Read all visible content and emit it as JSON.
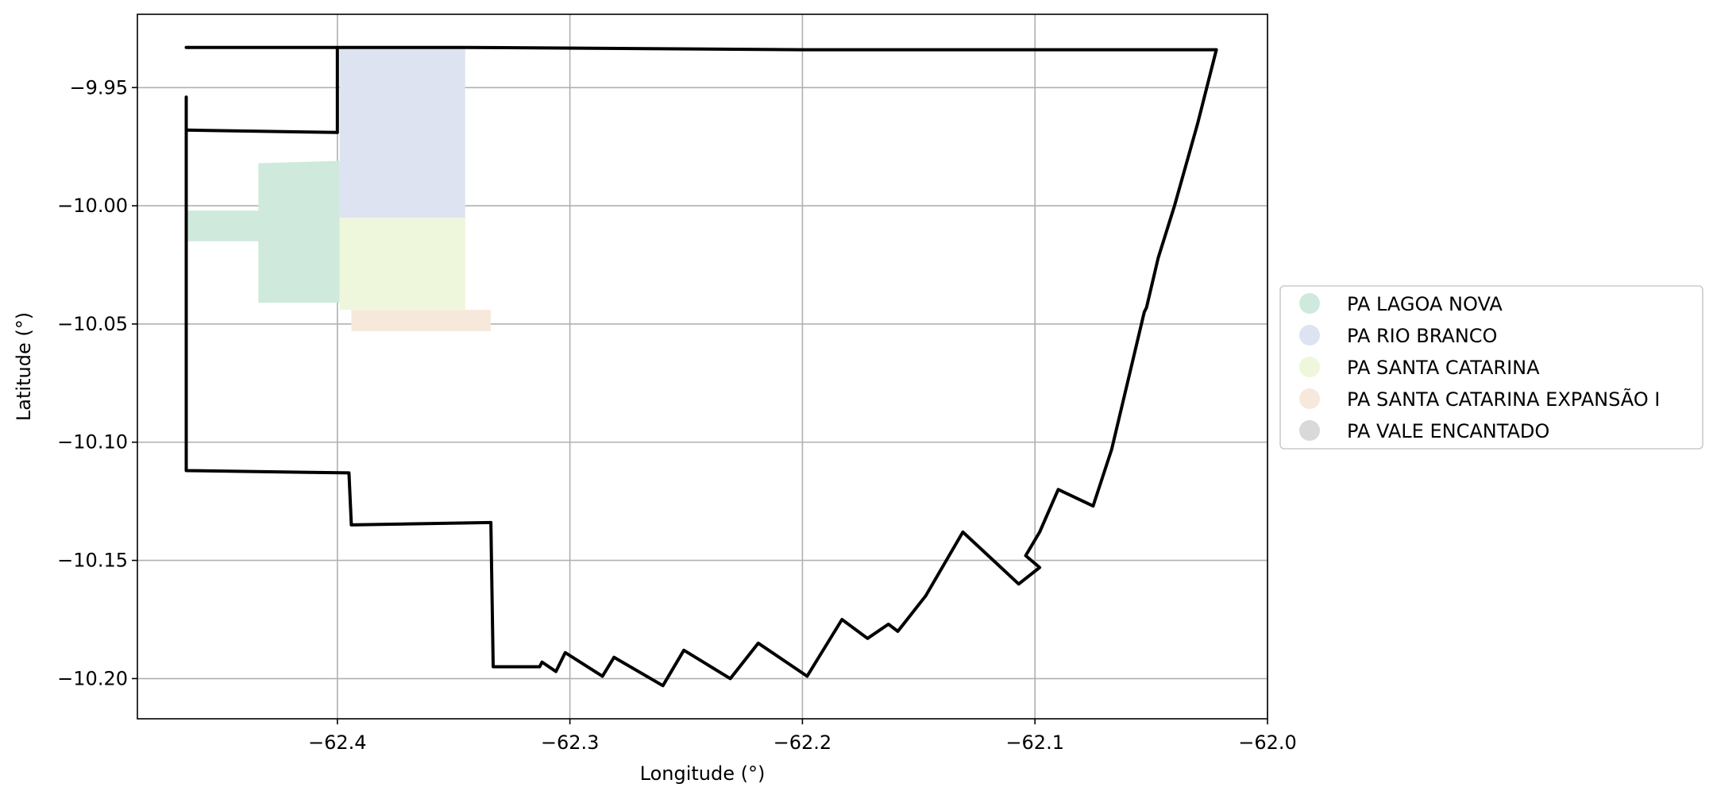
{
  "chart_data": {
    "type": "map",
    "xlabel": "Longitude (°)",
    "ylabel": "Latitude (°)",
    "xlim": [
      -62.486,
      -62.0
    ],
    "ylim": [
      -10.217,
      -9.919
    ],
    "grid": true,
    "legend_position": "center-right",
    "xticks": [
      {
        "value": -62.4,
        "label": "−62.4"
      },
      {
        "value": -62.3,
        "label": "−62.3"
      },
      {
        "value": -62.2,
        "label": "−62.2"
      },
      {
        "value": -62.1,
        "label": "−62.1"
      },
      {
        "value": -62.0,
        "label": "−62.0"
      }
    ],
    "yticks": [
      {
        "value": -9.95,
        "label": "−9.95"
      },
      {
        "value": -10.0,
        "label": "−10.00"
      },
      {
        "value": -10.05,
        "label": "−10.05"
      },
      {
        "value": -10.1,
        "label": "−10.10"
      },
      {
        "value": -10.15,
        "label": "−10.15"
      },
      {
        "value": -10.2,
        "label": "−10.20"
      }
    ],
    "legend": [
      {
        "label": "PA LAGOA NOVA",
        "color": "#cfe9dd"
      },
      {
        "label": "PA RIO BRANCO",
        "color": "#dde3f1"
      },
      {
        "label": "PA SANTA CATARINA",
        "color": "#eef7dc"
      },
      {
        "label": "PA SANTA CATARINA EXPANSÃO I",
        "color": "#f6e9dc"
      },
      {
        "label": "PA VALE ENCANTADO",
        "color": "#d9d9d9"
      }
    ],
    "regions": [
      {
        "name": "PA LAGOA NOVA",
        "color": "#cfe9dd",
        "polygon": [
          [
            -62.465,
            -10.002
          ],
          [
            -62.434,
            -10.002
          ],
          [
            -62.434,
            -9.982
          ],
          [
            -62.399,
            -9.981
          ],
          [
            -62.399,
            -10.041
          ],
          [
            -62.434,
            -10.041
          ],
          [
            -62.434,
            -10.015
          ],
          [
            -62.465,
            -10.015
          ]
        ]
      },
      {
        "name": "PA RIO BRANCO",
        "color": "#dde3f1",
        "polygon": [
          [
            -62.399,
            -9.933
          ],
          [
            -62.345,
            -9.933
          ],
          [
            -62.345,
            -10.005
          ],
          [
            -62.399,
            -10.005
          ]
        ]
      },
      {
        "name": "PA SANTA CATARINA",
        "color": "#eef7dc",
        "polygon": [
          [
            -62.399,
            -10.005
          ],
          [
            -62.345,
            -10.005
          ],
          [
            -62.345,
            -10.044
          ],
          [
            -62.399,
            -10.044
          ]
        ]
      },
      {
        "name": "PA SANTA CATARINA EXPANSÃO I",
        "color": "#f6e9dc",
        "polygon": [
          [
            -62.394,
            -10.044
          ],
          [
            -62.334,
            -10.044
          ],
          [
            -62.334,
            -10.053
          ],
          [
            -62.394,
            -10.053
          ]
        ]
      }
    ],
    "boundary": {
      "name": "PA VALE ENCANTADO",
      "color": "#000000",
      "line": [
        [
          -62.464,
          -9.933
        ],
        [
          -62.399,
          -9.933
        ],
        [
          -62.39,
          -9.933
        ],
        [
          -62.38,
          -9.933
        ],
        [
          -62.345,
          -9.933
        ],
        [
          -62.2,
          -9.934
        ],
        [
          -62.1,
          -9.934
        ],
        [
          -62.022,
          -9.934
        ],
        [
          -62.03,
          -9.965
        ],
        [
          -62.04,
          -10.0
        ],
        [
          -62.047,
          -10.022
        ],
        [
          -62.052,
          -10.043
        ],
        [
          -62.053,
          -10.045
        ],
        [
          -62.06,
          -10.074
        ],
        [
          -62.067,
          -10.103
        ],
        [
          -62.075,
          -10.127
        ],
        [
          -62.09,
          -10.12
        ],
        [
          -62.098,
          -10.138
        ],
        [
          -62.104,
          -10.148
        ],
        [
          -62.098,
          -10.153
        ],
        [
          -62.107,
          -10.16
        ],
        [
          -62.131,
          -10.138
        ],
        [
          -62.147,
          -10.165
        ],
        [
          -62.159,
          -10.18
        ],
        [
          -62.163,
          -10.177
        ],
        [
          -62.172,
          -10.183
        ],
        [
          -62.183,
          -10.175
        ],
        [
          -62.198,
          -10.199
        ],
        [
          -62.219,
          -10.185
        ],
        [
          -62.231,
          -10.2
        ],
        [
          -62.251,
          -10.188
        ],
        [
          -62.26,
          -10.203
        ],
        [
          -62.281,
          -10.191
        ],
        [
          -62.286,
          -10.199
        ],
        [
          -62.302,
          -10.189
        ],
        [
          -62.306,
          -10.197
        ],
        [
          -62.312,
          -10.193
        ],
        [
          -62.313,
          -10.195
        ],
        [
          -62.333,
          -10.195
        ],
        [
          -62.334,
          -10.134
        ],
        [
          -62.394,
          -10.135
        ],
        [
          -62.395,
          -10.113
        ],
        [
          -62.465,
          -10.112
        ],
        [
          -62.465,
          -9.968
        ],
        [
          -62.4,
          -9.969
        ],
        [
          -62.4,
          -9.933
        ]
      ],
      "extra_lines": [
        [
          [
            -62.465,
            -9.968
          ],
          [
            -62.465,
            -9.954
          ]
        ],
        [
          [
            -62.465,
            -9.933
          ],
          [
            -62.464,
            -9.933
          ]
        ]
      ]
    }
  }
}
